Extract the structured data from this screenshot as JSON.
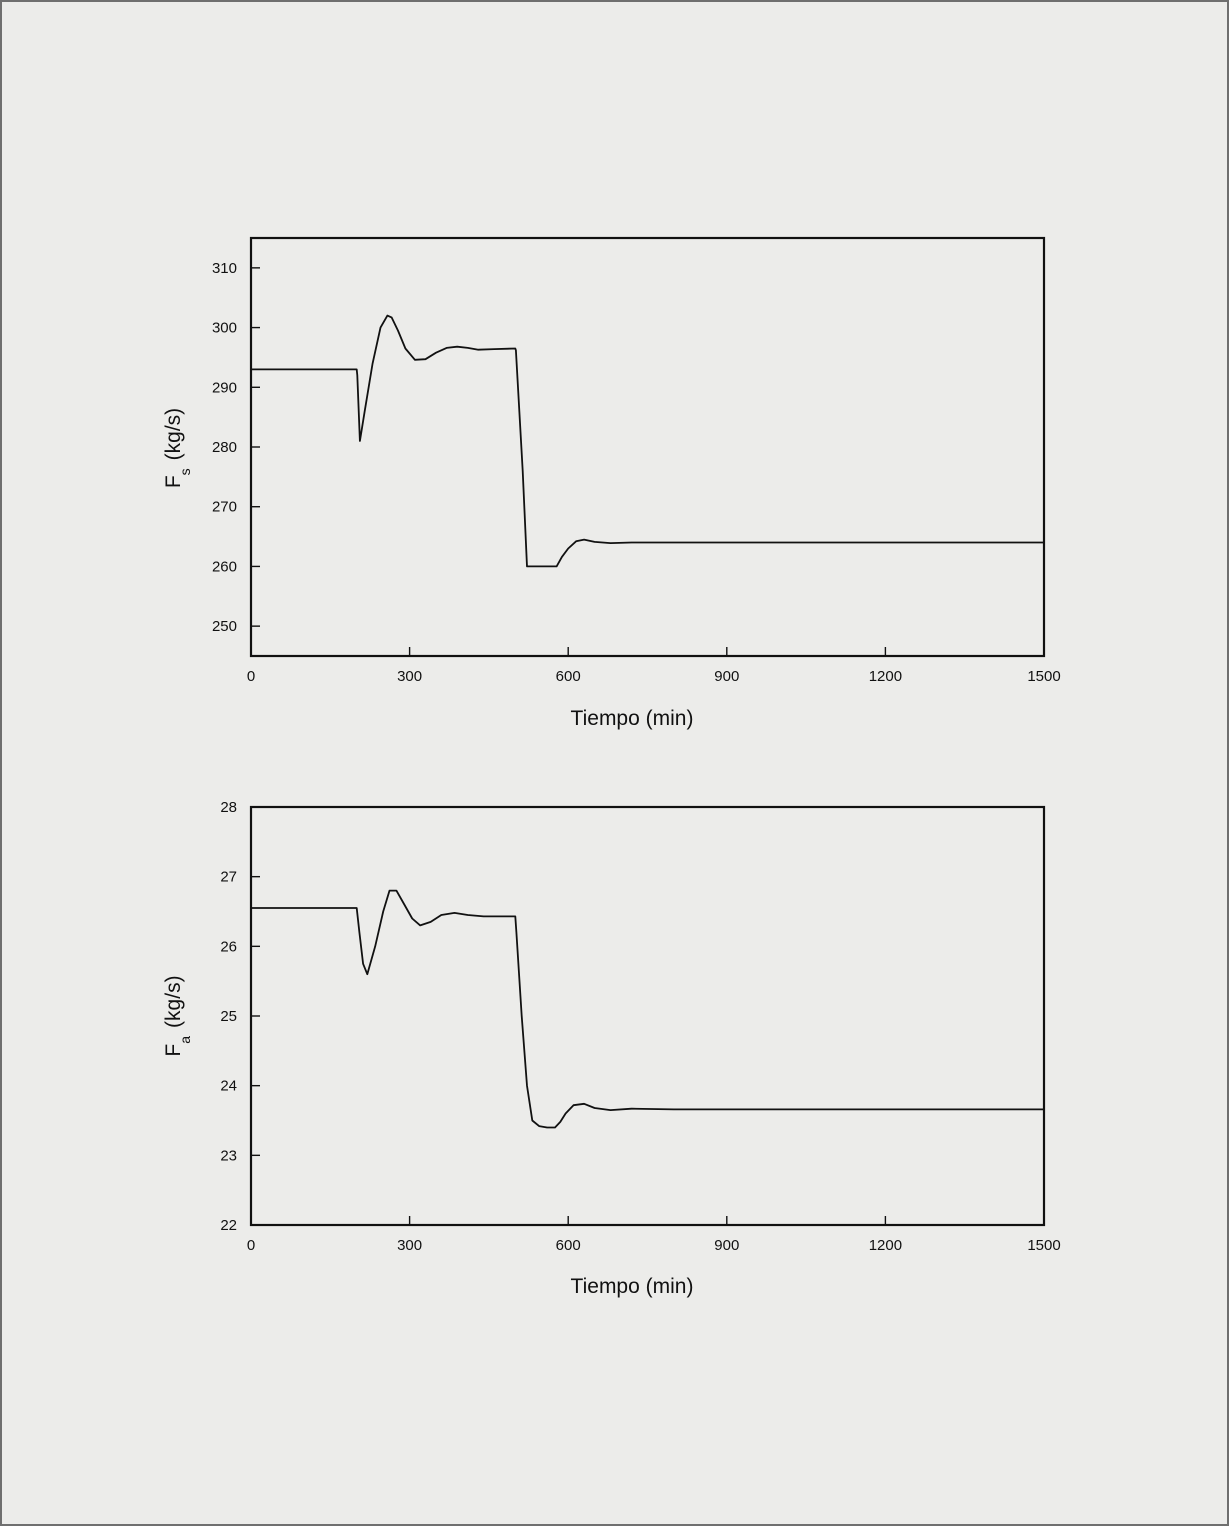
{
  "chart_data": [
    {
      "type": "line",
      "xlabel": "Tiempo (min)",
      "ylabel": {
        "main": "F",
        "subscript": "s",
        "unit": "(kg/s)"
      },
      "xlim": [
        0,
        1500
      ],
      "ylim": [
        245,
        315
      ],
      "xticks": [
        "0",
        "300",
        "600",
        "900",
        "1200",
        "1500"
      ],
      "yticks": [
        "250",
        "260",
        "270",
        "280",
        "290",
        "300",
        "310"
      ],
      "grid": false,
      "series": [
        {
          "x": [
            0,
            200,
            201,
            206,
            215,
            230,
            245,
            258,
            266,
            278,
            292,
            310,
            330,
            350,
            370,
            390,
            410,
            430,
            460,
            500,
            501,
            514,
            522,
            530,
            545,
            555,
            565,
            578,
            588,
            600,
            615,
            630,
            650,
            680,
            720,
            800,
            1000,
            1500
          ],
          "y": [
            293,
            293,
            292,
            281,
            286,
            294,
            300,
            302,
            301.7,
            299.5,
            296.5,
            294.6,
            294.7,
            295.8,
            296.6,
            296.8,
            296.6,
            296.3,
            296.4,
            296.5,
            296.2,
            276,
            260,
            260,
            260,
            260,
            260,
            260,
            261.6,
            263,
            264.2,
            264.5,
            264.1,
            263.9,
            264,
            264,
            264,
            264
          ]
        }
      ]
    },
    {
      "type": "line",
      "xlabel": "Tiempo (min)",
      "ylabel": {
        "main": "F",
        "subscript": "a",
        "unit": "(kg/s)"
      },
      "xlim": [
        0,
        1500
      ],
      "ylim": [
        22,
        28
      ],
      "xticks": [
        "0",
        "300",
        "600",
        "900",
        "1200",
        "1500"
      ],
      "yticks": [
        "22",
        "23",
        "24",
        "25",
        "26",
        "27",
        "28"
      ],
      "grid": false,
      "series": [
        {
          "x": [
            0,
            200,
            205,
            212,
            220,
            235,
            250,
            262,
            275,
            290,
            305,
            320,
            340,
            360,
            385,
            410,
            440,
            470,
            500,
            502,
            512,
            522,
            532,
            545,
            560,
            575,
            585,
            595,
            610,
            630,
            650,
            680,
            720,
            800,
            1000,
            1500
          ],
          "y": [
            26.55,
            26.55,
            26.2,
            25.75,
            25.6,
            26,
            26.5,
            26.8,
            26.8,
            26.6,
            26.4,
            26.3,
            26.35,
            26.45,
            26.48,
            26.45,
            26.43,
            26.43,
            26.43,
            26.2,
            25,
            24,
            23.5,
            23.42,
            23.4,
            23.4,
            23.48,
            23.6,
            23.72,
            23.74,
            23.68,
            23.65,
            23.67,
            23.66,
            23.66,
            23.66
          ]
        }
      ]
    }
  ]
}
